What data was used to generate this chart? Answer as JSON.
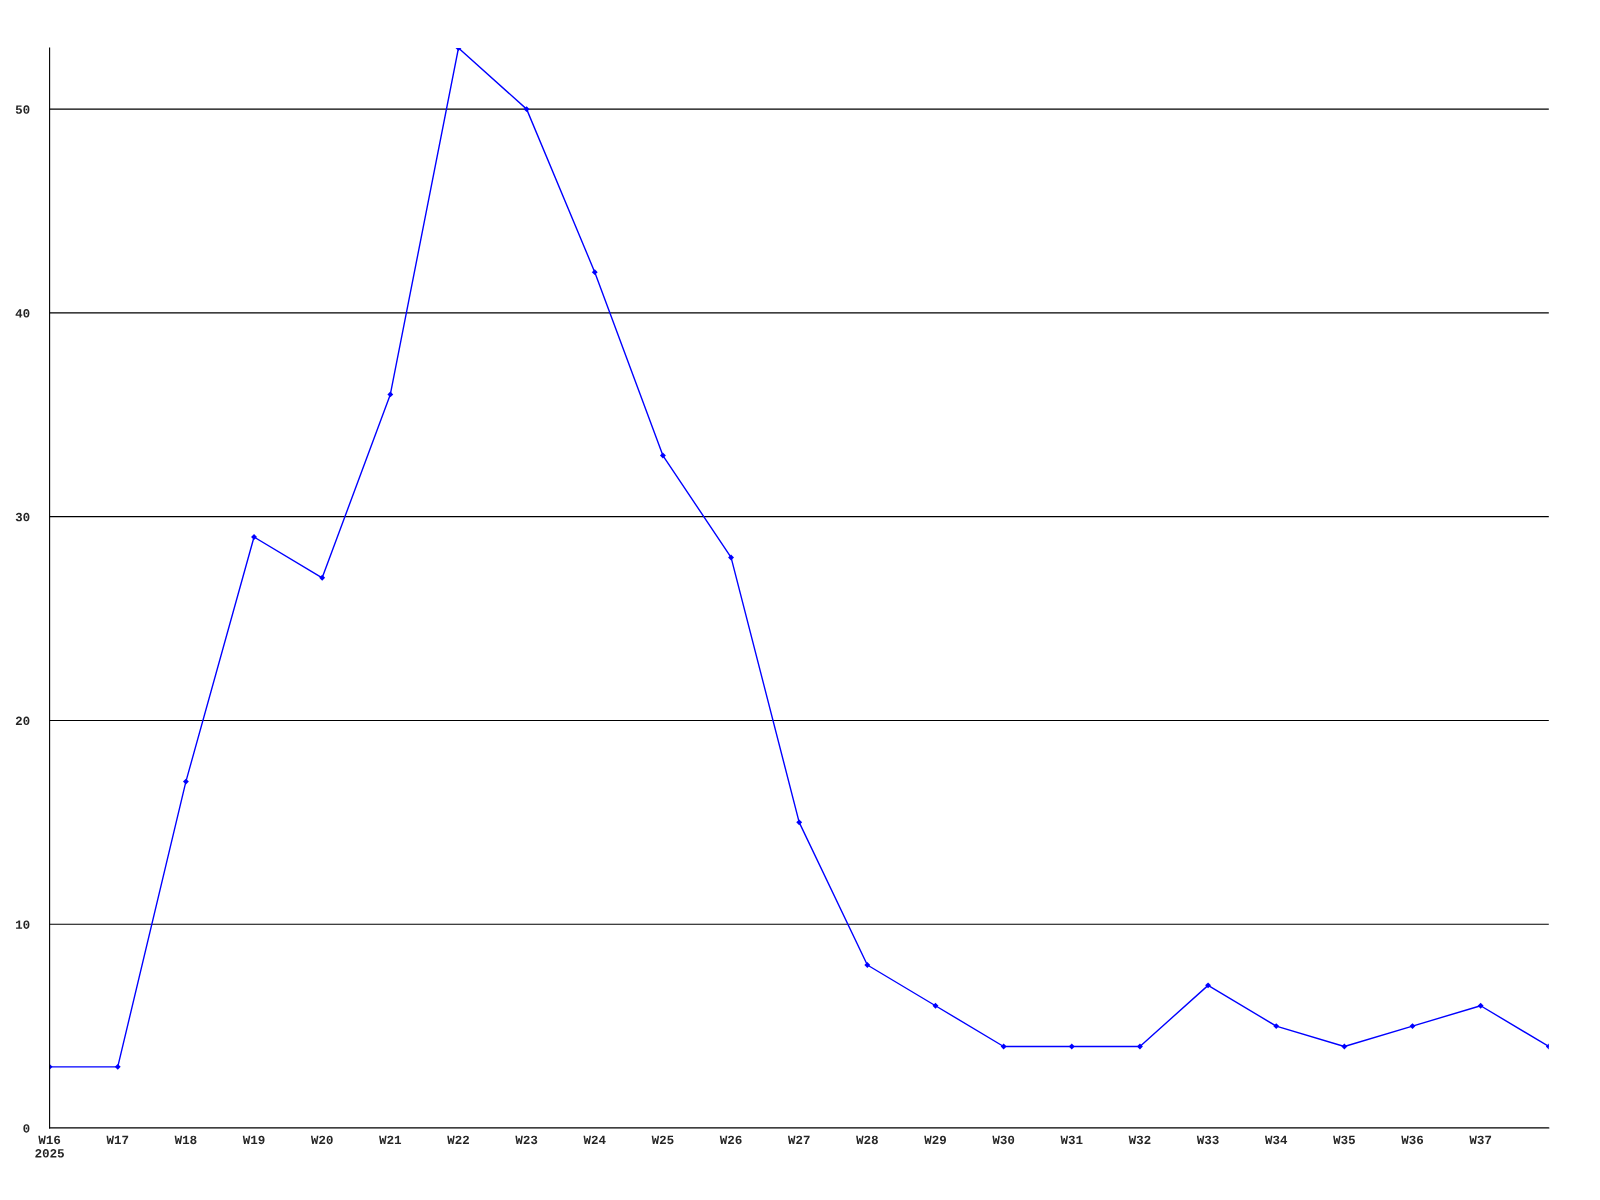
{
  "chart_data": {
    "type": "line",
    "categories": [
      "W16\n2025",
      "W17",
      "W18",
      "W19",
      "W20",
      "W21",
      "W22",
      "W23",
      "W24",
      "W25",
      "W26",
      "W27",
      "W28",
      "W29",
      "W30",
      "W31",
      "W32",
      "W33",
      "W34",
      "W35",
      "W36",
      "W37",
      null
    ],
    "series": [
      {
        "color": "#0000ff",
        "values": [
          3,
          3,
          17,
          29,
          27,
          36,
          53,
          50,
          42,
          33,
          28,
          15,
          8,
          6,
          4,
          4,
          4,
          7,
          5,
          4,
          5,
          6,
          4
        ]
      }
    ],
    "ylim": [
      0,
      53
    ],
    "yticks": [
      0,
      10,
      20,
      30,
      40,
      50
    ],
    "grid": "y",
    "marker": "diamond",
    "line_style": "solid"
  }
}
